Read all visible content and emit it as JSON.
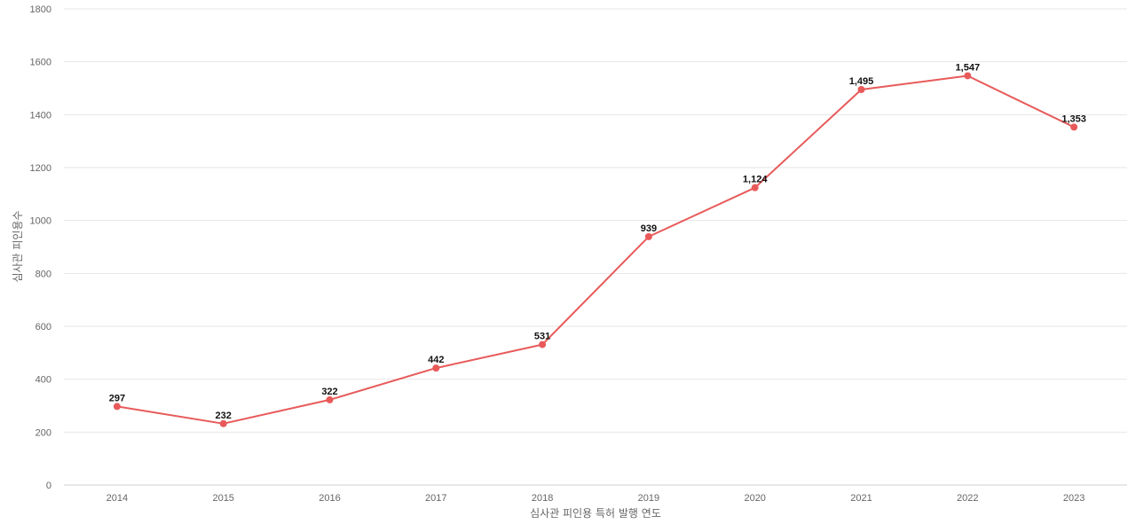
{
  "chart_data": {
    "type": "line",
    "title": "",
    "xlabel": "심사관 피인용 특허 발행 연도",
    "ylabel": "심사관 피인용수",
    "ylim": [
      0,
      1800
    ],
    "yticks": [
      0,
      200,
      400,
      600,
      800,
      1000,
      1200,
      1400,
      1600,
      1800
    ],
    "grid": true,
    "categories": [
      "2014",
      "2015",
      "2016",
      "2017",
      "2018",
      "2019",
      "2020",
      "2021",
      "2022",
      "2023"
    ],
    "series": [
      {
        "values": [
          297,
          232,
          322,
          442,
          531,
          939,
          1124,
          1495,
          1547,
          1353
        ],
        "labels": [
          "297",
          "232",
          "322",
          "442",
          "531",
          "939",
          "1,124",
          "1,495",
          "1,547",
          "1,353"
        ],
        "color": "#e85a5a"
      }
    ]
  }
}
